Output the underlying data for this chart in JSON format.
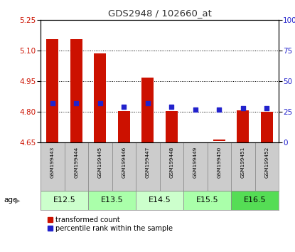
{
  "title": "GDS2948 / 102660_at",
  "samples": [
    "GSM199443",
    "GSM199444",
    "GSM199445",
    "GSM199446",
    "GSM199447",
    "GSM199448",
    "GSM199449",
    "GSM199450",
    "GSM199451",
    "GSM199452"
  ],
  "bar_bottom": [
    4.65,
    4.65,
    4.65,
    4.65,
    4.65,
    4.65,
    4.652,
    4.657,
    4.65,
    4.65
  ],
  "bar_top": [
    5.155,
    5.155,
    5.085,
    4.805,
    4.968,
    4.805,
    4.654,
    4.663,
    4.808,
    4.8
  ],
  "percentile": [
    32,
    32,
    32,
    29,
    32,
    29,
    27,
    27,
    28,
    28
  ],
  "ylim_left": [
    4.65,
    5.25
  ],
  "ylim_right": [
    0,
    100
  ],
  "yticks_left": [
    4.65,
    4.8,
    4.95,
    5.1,
    5.25
  ],
  "yticks_right": [
    0,
    25,
    50,
    75,
    100
  ],
  "ytick_right_labels": [
    "0",
    "25",
    "50",
    "75",
    "100%"
  ],
  "age_groups": [
    {
      "label": "E12.5",
      "cols": [
        0,
        1
      ],
      "color": "#ccffcc"
    },
    {
      "label": "E13.5",
      "cols": [
        2,
        3
      ],
      "color": "#aaffaa"
    },
    {
      "label": "E14.5",
      "cols": [
        4,
        5
      ],
      "color": "#ccffcc"
    },
    {
      "label": "E15.5",
      "cols": [
        6,
        7
      ],
      "color": "#aaffaa"
    },
    {
      "label": "E16.5",
      "cols": [
        8,
        9
      ],
      "color": "#55dd55"
    }
  ],
  "bar_color": "#cc1100",
  "dot_color": "#2222cc",
  "title_color": "#333333",
  "left_axis_color": "#cc1100",
  "right_axis_color": "#2222cc",
  "sample_box_color": "#cccccc",
  "legend_items": [
    "transformed count",
    "percentile rank within the sample"
  ],
  "grid_lines": [
    4.8,
    4.95,
    5.1
  ]
}
